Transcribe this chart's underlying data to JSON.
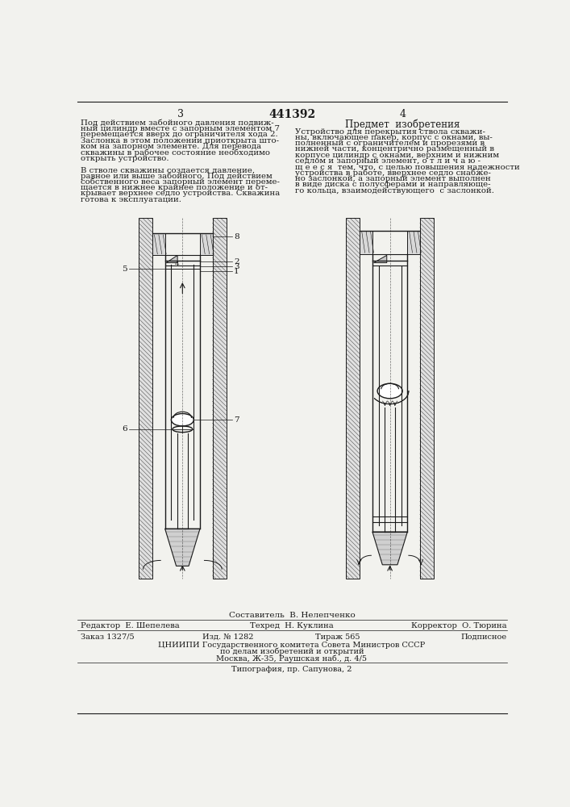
{
  "patent_number": "441392",
  "page_left": "3",
  "page_right": "4",
  "left_lines": [
    "Под действием забойного давления подвиж-",
    "ный цилиндр вместе с запорным элементом 7",
    "перемещается вверх до ограничителя хода 2.",
    "Заслонка в этом положении приоткрыта што-",
    "ком на запорном элементе. Для перевода",
    "скважины в рабочее состояние необходимо",
    "открыть устройство.",
    "",
    "В стволе скважины создается давление,",
    "равное или выше забойного. Под действием",
    "собственного веса запорный элемент переме-",
    "щается в нижнее крайнее положение и от-",
    "крывает верхнее седло устройства. Скважина",
    "готова к эксплуатации."
  ],
  "section_title": "Предмет  изобретения",
  "right_lines": [
    "Устройство для перекрытия ствола скважи-",
    "ны, включающее пакер, корпус с окнами, вы-",
    "полненный с ограничителем и прорезями в",
    "нижней части, концентрично размещенный в",
    "корпусе цилиндр с окнами, верхним и нижним",
    "седлом и запорный элемент, о т л и ч а ю -",
    "щ е е с я  тем, что, с целью повышения надежности",
    "устройства в работе, вверхнее седло снабже-",
    "но заслонкой, а запорный элемент выполнен",
    "в виде диска с полусферами и направляюще-",
    "го кольца, взаимодействующего  с заслонкой."
  ],
  "composer": "Составитель  В. Нелепченко",
  "editor_str": "Редактор  Е. Шепелева",
  "techred_str": "Техред  Н. Куклина",
  "corrector_str": "Корректор  О. Тюрина",
  "order_label": "Заказ 1327/5",
  "izd_label": "Изд. № 1282",
  "tirazh_label": "Тираж 565",
  "podpisnoe_label": "Подписное",
  "org_line1": "ЦНИИПИ Государственного комитета Совета Министров СССР",
  "org_line2": "по делам изобретений и открытий",
  "org_line3": "Москва, Ж-35, Раушская наб., д. 4/5",
  "typography": "Типография, пр. Сапунова, 2",
  "bg_color": "#f2f2ee",
  "text_color": "#1a1a1a"
}
